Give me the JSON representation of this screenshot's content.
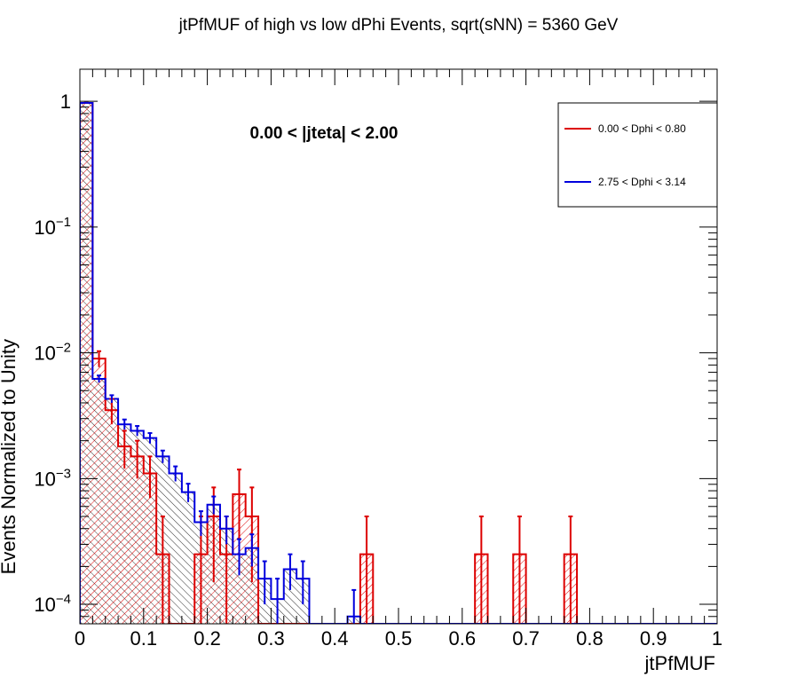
{
  "chart_data": {
    "type": "histogram",
    "title": "jtPfMUF of high vs low dPhi Events, sqrt(sNN) = 5360 GeV",
    "xlabel": "jtPfMUF",
    "ylabel": "Events Normalized to Unity",
    "xlim": [
      0,
      1
    ],
    "ylim": [
      7e-05,
      1.8
    ],
    "log_y": true,
    "grid": false,
    "legend_position": "top-right",
    "annotation": "0.00 < |jteta| < 2.00",
    "x_tick_labels": [
      "0",
      "0.1",
      "0.2",
      "0.3",
      "0.4",
      "0.5",
      "0.6",
      "0.7",
      "0.8",
      "0.9",
      "1"
    ],
    "y_tick_labels": [
      {
        "base": "1",
        "exp": ""
      },
      {
        "base": "10",
        "exp": "−1"
      },
      {
        "base": "10",
        "exp": "−2"
      },
      {
        "base": "10",
        "exp": "−3"
      },
      {
        "base": "10",
        "exp": "−4"
      }
    ],
    "bin_width": 0.02,
    "series": [
      {
        "name": "0.00 < Dphi < 0.80",
        "color": "#dd0000",
        "values": [
          0.97,
          0.009,
          0.0035,
          0.0018,
          0.0015,
          0.0011,
          0.00025,
          0,
          0,
          0.00025,
          0.0005,
          0.00025,
          0.00075,
          0.0005,
          0,
          0,
          0,
          0,
          0,
          0,
          0,
          0,
          0.00025,
          0,
          0,
          0,
          0,
          0,
          0,
          0,
          0,
          0.00025,
          0,
          0,
          0.00025,
          0,
          0,
          0,
          0.00025,
          0,
          0,
          0,
          0,
          0,
          0,
          0,
          0,
          0,
          0,
          0
        ],
        "errors": [
          0.005,
          0.0013,
          0.0008,
          0.0006,
          0.0005,
          0.0004,
          0.00025,
          0,
          0,
          0.00025,
          0.00035,
          0.00025,
          0.00043,
          0.00035,
          0,
          0,
          0,
          0,
          0,
          0,
          0,
          0,
          0.00025,
          0,
          0,
          0,
          0,
          0,
          0,
          0,
          0,
          0.00025,
          0,
          0,
          0.00025,
          0,
          0,
          0,
          0.00025,
          0,
          0,
          0,
          0,
          0,
          0,
          0,
          0,
          0,
          0,
          0
        ]
      },
      {
        "name": "2.75 < Dphi < 3.14",
        "color": "#0000dd",
        "values": [
          0.97,
          0.0062,
          0.0043,
          0.0027,
          0.0024,
          0.0021,
          0.0015,
          0.0011,
          0.00078,
          0.00045,
          0.00062,
          0.0004,
          0.00025,
          0.00028,
          0.00016,
          0.00011,
          0.00019,
          0.00016,
          0,
          0,
          0,
          8e-05,
          0,
          0,
          0,
          0,
          0,
          0,
          0,
          0,
          0,
          0,
          0,
          0,
          0,
          0,
          0,
          0,
          0,
          0,
          0,
          0,
          0,
          0,
          0,
          0,
          0,
          0,
          0,
          0
        ],
        "errors": [
          0.004,
          0.0004,
          0.0003,
          0.00025,
          0.00022,
          0.0002,
          0.00017,
          0.00015,
          0.00013,
          0.0001,
          0.0001,
          0.0001,
          8e-05,
          8e-05,
          6e-05,
          5e-05,
          6e-05,
          6e-05,
          0,
          0,
          0,
          5e-05,
          0,
          0,
          0,
          0,
          0,
          0,
          0,
          0,
          0,
          0,
          0,
          0,
          0,
          0,
          0,
          0,
          0,
          0,
          0,
          0,
          0,
          0,
          0,
          0,
          0,
          0,
          0,
          0
        ]
      }
    ]
  }
}
